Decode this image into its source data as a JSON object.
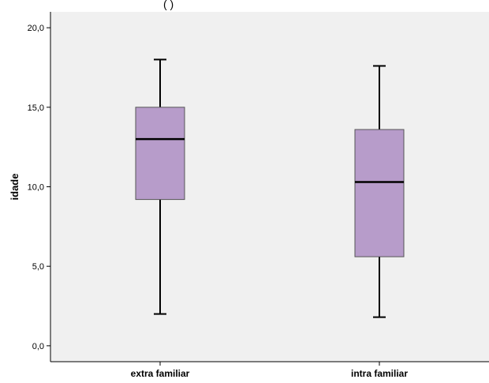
{
  "chart_data": {
    "type": "boxplot",
    "title": "",
    "xlabel": "",
    "ylabel": "idade",
    "ylim": [
      -1.0,
      21.0
    ],
    "yticks": [
      0,
      5,
      10,
      15,
      20
    ],
    "ytick_labels": [
      "0,0",
      "5,0",
      "10,0",
      "15,0",
      "20,0"
    ],
    "categories": [
      "extra familiar",
      "intra familiar"
    ],
    "boxes": [
      {
        "category": "extra familiar",
        "min": 2.0,
        "q1": 9.2,
        "median": 13.0,
        "q3": 15.0,
        "max": 18.0
      },
      {
        "category": "intra familiar",
        "min": 1.8,
        "q1": 5.6,
        "median": 10.3,
        "q3": 13.6,
        "max": 17.6
      }
    ],
    "grid": false,
    "colors": {
      "box_fill": "#b79cca",
      "plot_background": "#f0f0f0",
      "line": "#000000"
    }
  },
  "top_text": "(                                              )"
}
